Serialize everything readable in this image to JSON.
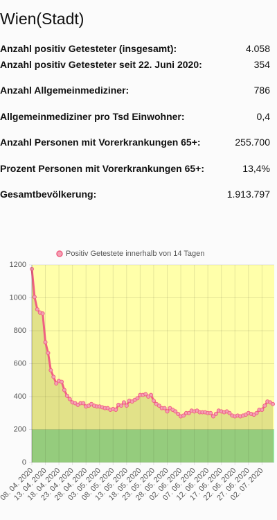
{
  "title": "Wien(Stadt)",
  "stats": [
    {
      "label": "Anzahl positiv Getesteter (insgesamt):",
      "value": "4.058"
    },
    {
      "label": "Anzahl positiv Getesteter seit 22. Juni 2020:",
      "value": "354"
    },
    {
      "label": "Anzahl Allgemeinmediziner:",
      "value": "786"
    },
    {
      "label": "Allgemeinmediziner pro Tsd Einwohner:",
      "value": "0,4"
    },
    {
      "label": "Anzahl Personen mit Vorerkrankungen 65+:",
      "value": "255.700"
    },
    {
      "label": "Prozent Personen mit Vorerkrankungen 65+:",
      "value": "13,4%"
    },
    {
      "label": "Gesamtbevölkerung:",
      "value": "1.913.797"
    }
  ],
  "chart_data": {
    "type": "line",
    "categories": [
      "08. 04. 2020",
      null,
      null,
      null,
      null,
      "13. 04. 2020",
      null,
      null,
      null,
      null,
      "18. 04. 2020",
      null,
      null,
      null,
      null,
      "23. 04. 2020",
      null,
      null,
      null,
      null,
      "28. 04. 2020",
      null,
      null,
      null,
      null,
      "03. 05. 2020",
      null,
      null,
      null,
      null,
      "08. 05. 2020",
      null,
      null,
      null,
      null,
      "13. 05. 2020",
      null,
      null,
      null,
      null,
      "18. 05. 2020",
      null,
      null,
      null,
      null,
      "23. 05. 2020",
      null,
      null,
      null,
      null,
      "28. 05. 2020",
      null,
      null,
      null,
      null,
      "02. 06. 2020",
      null,
      null,
      null,
      null,
      "07. 06. 2020",
      null,
      null,
      null,
      null,
      "12. 06. 2020",
      null,
      null,
      null,
      null,
      "17. 06. 2020",
      null,
      null,
      null,
      null,
      "22. 06. 2020",
      null,
      null,
      null,
      null,
      "27. 06. 2020",
      null,
      null,
      null,
      null,
      "02. 07. 2020",
      null,
      null,
      null,
      null
    ],
    "series": [
      {
        "name": "Positiv Getestete innerhalb von 14 Tagen",
        "color": "#f06082",
        "values": [
          1175,
          1005,
          930,
          910,
          905,
          730,
          665,
          560,
          520,
          480,
          495,
          490,
          440,
          405,
          385,
          365,
          360,
          350,
          360,
          360,
          340,
          345,
          355,
          345,
          340,
          340,
          335,
          330,
          330,
          320,
          325,
          320,
          350,
          345,
          365,
          345,
          375,
          370,
          380,
          390,
          410,
          410,
          415,
          400,
          410,
          375,
          355,
          345,
          330,
          330,
          310,
          330,
          320,
          310,
          295,
          280,
          285,
          300,
          300,
          315,
          310,
          315,
          305,
          305,
          305,
          300,
          300,
          280,
          295,
          315,
          310,
          305,
          310,
          300,
          285,
          280,
          285,
          280,
          285,
          290,
          300,
          295,
          290,
          300,
          320,
          320,
          345,
          370,
          365,
          355
        ]
      }
    ],
    "ylim": [
      0,
      1200
    ],
    "yticks": [
      0,
      200,
      400,
      600,
      800,
      1000,
      1200
    ],
    "grid": true,
    "bands": [
      {
        "from": 0,
        "to": 200,
        "color": "#98e29a"
      },
      {
        "from": 200,
        "to": 1200,
        "color": "#ffffaa"
      }
    ]
  }
}
